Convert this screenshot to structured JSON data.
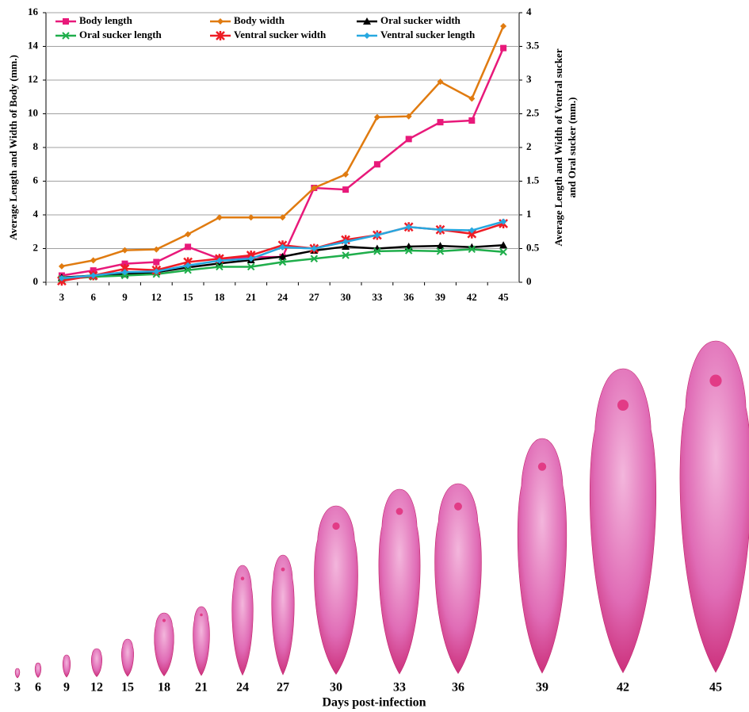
{
  "chart_data": {
    "type": "line",
    "ylabel": "Average Length and Width of Body (mm.)",
    "y2label": [
      "Average Length and Width of Ventral sucker",
      "and Oral sucker (mm.)"
    ],
    "categories": [
      3,
      6,
      9,
      12,
      15,
      18,
      21,
      24,
      27,
      30,
      33,
      36,
      39,
      42,
      45
    ],
    "ylim": [
      0,
      16
    ],
    "yticks": [
      0,
      2,
      4,
      6,
      8,
      10,
      12,
      14,
      16
    ],
    "y2lim": [
      0,
      4
    ],
    "y2ticks": [
      0,
      0.5,
      1,
      1.5,
      2,
      2.5,
      3,
      3.5,
      4
    ],
    "grid": true,
    "series": [
      {
        "name": "Body length",
        "color": "#e8197a",
        "marker": "square",
        "values": [
          0.4,
          0.7,
          1.1,
          1.2,
          2.1,
          1.4,
          1.5,
          1.5,
          5.6,
          5.5,
          7.0,
          8.5,
          9.5,
          9.6,
          13.9
        ]
      },
      {
        "name": "Body width",
        "color": "#e07b10",
        "marker": "diamond",
        "values": [
          0.95,
          1.3,
          1.9,
          1.95,
          2.85,
          3.85,
          3.85,
          3.85,
          5.6,
          6.4,
          9.8,
          9.85,
          11.9,
          10.9,
          15.2
        ]
      },
      {
        "name": "Oral sucker width",
        "color": "#000000",
        "marker": "triangle",
        "axis": "y2",
        "values": [
          0.07,
          0.1,
          0.12,
          0.15,
          0.22,
          0.28,
          0.33,
          0.38,
          0.47,
          0.53,
          0.5,
          0.53,
          0.54,
          0.52,
          0.55
        ]
      },
      {
        "name": "Oral sucker length",
        "color": "#1fae4b",
        "marker": "x",
        "axis": "y2",
        "values": [
          0.05,
          0.08,
          0.1,
          0.12,
          0.18,
          0.23,
          0.23,
          0.3,
          0.35,
          0.4,
          0.46,
          0.47,
          0.46,
          0.49,
          0.45
        ]
      },
      {
        "name": "Ventral sucker width",
        "color": "#ee1c25",
        "marker": "star",
        "axis": "y2",
        "values": [
          0.02,
          0.1,
          0.2,
          0.18,
          0.3,
          0.35,
          0.4,
          0.55,
          0.5,
          0.63,
          0.7,
          0.82,
          0.78,
          0.72,
          0.87
        ]
      },
      {
        "name": "Ventral sucker length",
        "color": "#27a8e0",
        "marker": "circle",
        "axis": "y2",
        "values": [
          0.06,
          0.1,
          0.15,
          0.16,
          0.25,
          0.32,
          0.35,
          0.52,
          0.5,
          0.6,
          0.7,
          0.82,
          0.78,
          0.77,
          0.9
        ]
      }
    ]
  },
  "photo": {
    "labels": [
      3,
      6,
      9,
      12,
      15,
      18,
      21,
      24,
      27,
      30,
      33,
      36,
      39,
      42,
      45
    ],
    "xlabel": "Days post-infection"
  }
}
